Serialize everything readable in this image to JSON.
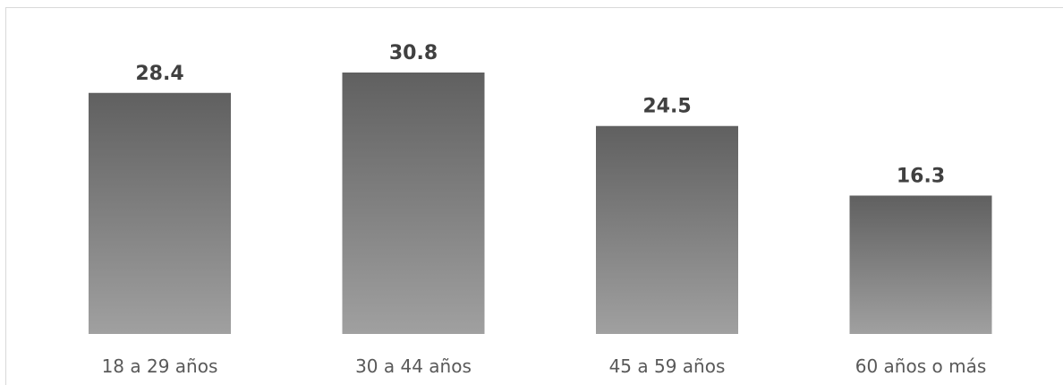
{
  "chart_data": {
    "type": "bar",
    "categories": [
      "18 a 29 años",
      "30 a 44 años",
      "45 a 59 años",
      "60 años o más"
    ],
    "values": [
      28.4,
      30.8,
      24.5,
      16.3
    ],
    "value_labels": [
      "28.4",
      "30.8",
      "24.5",
      "16.3"
    ],
    "title": "",
    "xlabel": "",
    "ylabel": "",
    "ylim": [
      0,
      30.8
    ],
    "grid": false,
    "legend": "none",
    "colors": {
      "bar_top": "#606060",
      "bar_bottom": "#a0a0a0",
      "value_text": "#404040",
      "category_text": "#595959",
      "frame": "#d9d9d9"
    }
  }
}
